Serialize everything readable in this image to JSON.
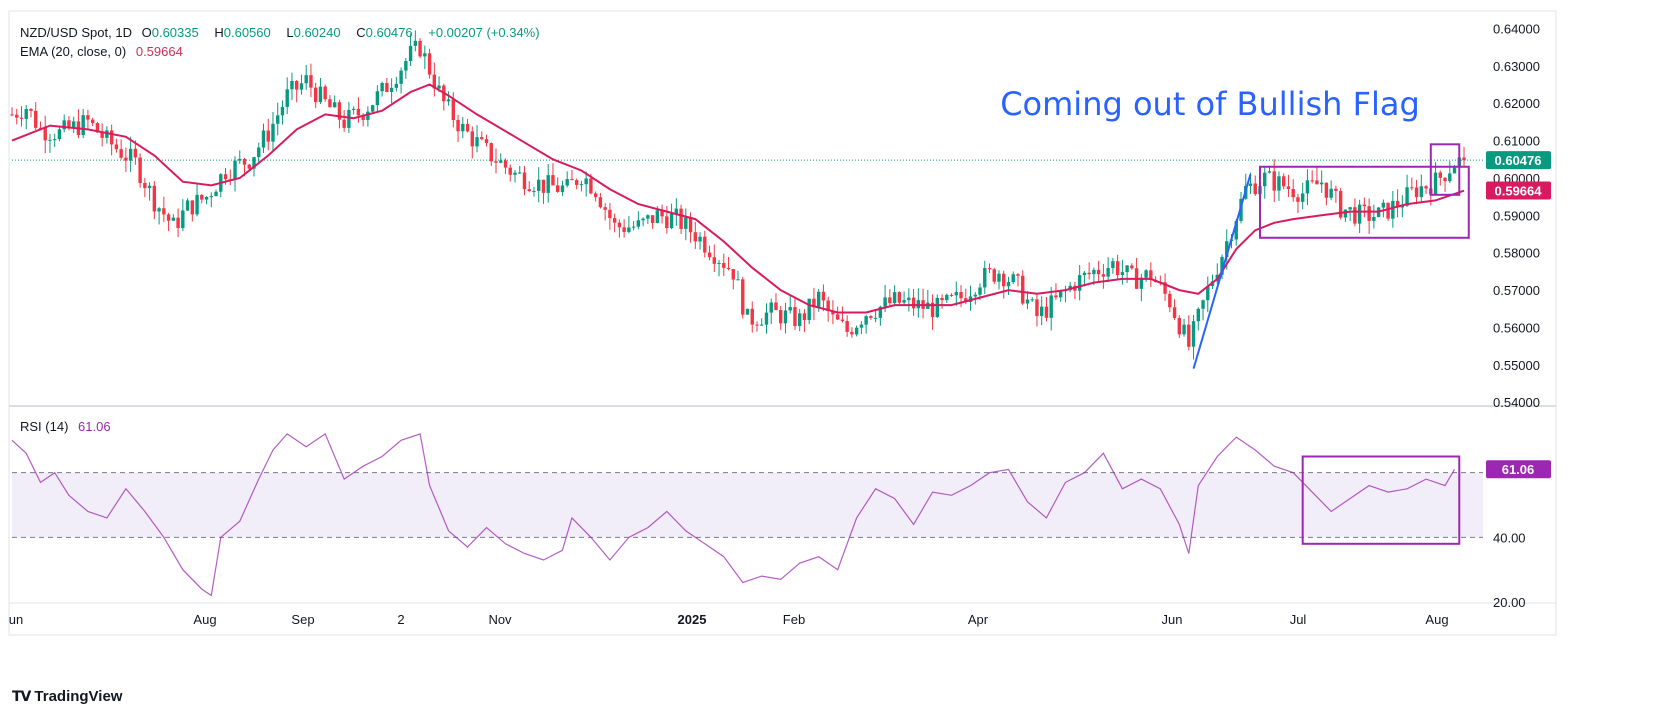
{
  "legend": {
    "symbol": "NZD/USD Spot, 1D",
    "open_label": "O",
    "open": "0.60335",
    "high_label": "H",
    "high": "0.60560",
    "low_label": "L",
    "low": "0.60240",
    "close_label": "C",
    "close": "0.60476",
    "change": "+0.00207 (+0.34%)",
    "ema_label": "EMA (20, close, 0)",
    "ema_value": "0.59664",
    "rsi_label": "RSI (14)",
    "rsi_value": "61.06"
  },
  "annotation": "Coming out of Bullish Flag",
  "brand": {
    "icon": "tradingview-logo-icon",
    "name": "TradingView"
  },
  "colors": {
    "up": "#089981",
    "down": "#f23645",
    "ema": "#d81b60",
    "rsi": "#9c27b0",
    "annotation": "#2962ff",
    "box": "#9c27b0",
    "trendline": "#2962ff",
    "price_badge": "#089981",
    "ema_badge": "#d81b60",
    "rsi_badge": "#9c27b0"
  },
  "chart_data": {
    "type": "candlestick",
    "price_axis": {
      "ticks": [
        "0.64000",
        "0.63000",
        "0.62000",
        "0.61000",
        "0.60000",
        "0.59000",
        "0.58000",
        "0.57000",
        "0.56000",
        "0.55000",
        "0.54000"
      ],
      "range": [
        0.54,
        0.64
      ]
    },
    "rsi_axis": {
      "ticks": [
        "20.00",
        "40.00"
      ],
      "range": [
        20,
        80
      ],
      "bands": [
        40,
        60
      ]
    },
    "x_labels": [
      "un",
      "Aug",
      "Sep",
      "2",
      "Nov",
      "2025",
      "Feb",
      "Apr",
      "Jun",
      "Jul",
      "Aug"
    ],
    "price_badge": "0.60476",
    "ema_badge": "0.59664",
    "rsi_badge": "61.06",
    "current_price": 0.60476,
    "current_ema": 0.59664,
    "current_rsi": 61.06,
    "price_path": [
      [
        0,
        0.617
      ],
      [
        3,
        0.619
      ],
      [
        6,
        0.613
      ],
      [
        10,
        0.612
      ],
      [
        16,
        0.615
      ],
      [
        20,
        0.61
      ],
      [
        26,
        0.604
      ],
      [
        30,
        0.594
      ],
      [
        34,
        0.587
      ],
      [
        37,
        0.592
      ],
      [
        41,
        0.595
      ],
      [
        45,
        0.602
      ],
      [
        50,
        0.605
      ],
      [
        54,
        0.612
      ],
      [
        58,
        0.622
      ],
      [
        62,
        0.626
      ],
      [
        66,
        0.62
      ],
      [
        70,
        0.615
      ],
      [
        74,
        0.618
      ],
      [
        78,
        0.623
      ],
      [
        81,
        0.628
      ],
      [
        84,
        0.633
      ],
      [
        86,
        0.635
      ],
      [
        88,
        0.629
      ],
      [
        91,
        0.62
      ],
      [
        95,
        0.613
      ],
      [
        100,
        0.607
      ],
      [
        106,
        0.601
      ],
      [
        112,
        0.598
      ],
      [
        117,
        0.597
      ],
      [
        120,
        0.601
      ],
      [
        123,
        0.597
      ],
      [
        127,
        0.587
      ],
      [
        132,
        0.587
      ],
      [
        136,
        0.59
      ],
      [
        140,
        0.589
      ],
      [
        144,
        0.585
      ],
      [
        148,
        0.58
      ],
      [
        152,
        0.575
      ],
      [
        155,
        0.562
      ],
      [
        160,
        0.564
      ],
      [
        166,
        0.562
      ],
      [
        170,
        0.568
      ],
      [
        173,
        0.562
      ],
      [
        176,
        0.559
      ],
      [
        180,
        0.564
      ],
      [
        186,
        0.567
      ],
      [
        190,
        0.566
      ],
      [
        195,
        0.565
      ],
      [
        200,
        0.568
      ],
      [
        204,
        0.573
      ],
      [
        208,
        0.575
      ],
      [
        212,
        0.571
      ],
      [
        216,
        0.563
      ],
      [
        220,
        0.567
      ],
      [
        224,
        0.572
      ],
      [
        228,
        0.575
      ],
      [
        232,
        0.577
      ],
      [
        236,
        0.573
      ],
      [
        240,
        0.574
      ],
      [
        244,
        0.567
      ],
      [
        248,
        0.555
      ],
      [
        252,
        0.57
      ],
      [
        256,
        0.583
      ],
      [
        260,
        0.597
      ],
      [
        264,
        0.6
      ],
      [
        268,
        0.598
      ],
      [
        272,
        0.596
      ],
      [
        276,
        0.599
      ],
      [
        280,
        0.592
      ],
      [
        284,
        0.59
      ],
      [
        288,
        0.59
      ],
      [
        292,
        0.593
      ],
      [
        296,
        0.597
      ],
      [
        300,
        0.599
      ],
      [
        304,
        0.604
      ],
      [
        306,
        0.6048
      ]
    ],
    "ema_path": [
      [
        0,
        0.61
      ],
      [
        8,
        0.614
      ],
      [
        16,
        0.613
      ],
      [
        24,
        0.611
      ],
      [
        30,
        0.606
      ],
      [
        36,
        0.599
      ],
      [
        42,
        0.598
      ],
      [
        48,
        0.6
      ],
      [
        54,
        0.606
      ],
      [
        60,
        0.613
      ],
      [
        66,
        0.617
      ],
      [
        72,
        0.616
      ],
      [
        78,
        0.618
      ],
      [
        84,
        0.623
      ],
      [
        88,
        0.625
      ],
      [
        92,
        0.622
      ],
      [
        98,
        0.617
      ],
      [
        106,
        0.611
      ],
      [
        114,
        0.605
      ],
      [
        120,
        0.602
      ],
      [
        126,
        0.597
      ],
      [
        132,
        0.593
      ],
      [
        138,
        0.591
      ],
      [
        144,
        0.589
      ],
      [
        150,
        0.583
      ],
      [
        156,
        0.576
      ],
      [
        162,
        0.57
      ],
      [
        168,
        0.566
      ],
      [
        174,
        0.564
      ],
      [
        180,
        0.564
      ],
      [
        186,
        0.566
      ],
      [
        192,
        0.566
      ],
      [
        198,
        0.566
      ],
      [
        204,
        0.568
      ],
      [
        210,
        0.57
      ],
      [
        216,
        0.569
      ],
      [
        222,
        0.57
      ],
      [
        228,
        0.572
      ],
      [
        234,
        0.573
      ],
      [
        240,
        0.573
      ],
      [
        246,
        0.57
      ],
      [
        250,
        0.569
      ],
      [
        254,
        0.573
      ],
      [
        258,
        0.581
      ],
      [
        262,
        0.586
      ],
      [
        266,
        0.588
      ],
      [
        270,
        0.589
      ],
      [
        276,
        0.59
      ],
      [
        282,
        0.591
      ],
      [
        288,
        0.591
      ],
      [
        294,
        0.593
      ],
      [
        300,
        0.594
      ],
      [
        306,
        0.5966
      ]
    ],
    "rsi_path": [
      [
        0,
        70
      ],
      [
        3,
        66
      ],
      [
        6,
        57
      ],
      [
        9,
        60
      ],
      [
        12,
        53
      ],
      [
        16,
        48
      ],
      [
        20,
        46
      ],
      [
        24,
        55
      ],
      [
        28,
        48
      ],
      [
        32,
        40
      ],
      [
        36,
        30
      ],
      [
        40,
        24
      ],
      [
        42,
        22
      ],
      [
        44,
        40
      ],
      [
        48,
        45
      ],
      [
        52,
        58
      ],
      [
        55,
        67
      ],
      [
        58,
        72
      ],
      [
        62,
        68
      ],
      [
        66,
        72
      ],
      [
        70,
        58
      ],
      [
        74,
        62
      ],
      [
        78,
        65
      ],
      [
        82,
        70
      ],
      [
        86,
        72
      ],
      [
        88,
        56
      ],
      [
        92,
        42
      ],
      [
        96,
        37
      ],
      [
        100,
        43
      ],
      [
        104,
        38
      ],
      [
        108,
        35
      ],
      [
        112,
        33
      ],
      [
        116,
        36
      ],
      [
        118,
        46
      ],
      [
        122,
        40
      ],
      [
        126,
        33
      ],
      [
        130,
        40
      ],
      [
        134,
        43
      ],
      [
        138,
        48
      ],
      [
        142,
        42
      ],
      [
        146,
        38
      ],
      [
        150,
        34
      ],
      [
        154,
        26
      ],
      [
        158,
        28
      ],
      [
        162,
        27
      ],
      [
        166,
        32
      ],
      [
        170,
        34
      ],
      [
        174,
        30
      ],
      [
        178,
        46
      ],
      [
        182,
        55
      ],
      [
        186,
        52
      ],
      [
        190,
        44
      ],
      [
        194,
        54
      ],
      [
        198,
        53
      ],
      [
        202,
        56
      ],
      [
        206,
        60
      ],
      [
        210,
        61
      ],
      [
        214,
        51
      ],
      [
        218,
        46
      ],
      [
        222,
        57
      ],
      [
        226,
        60
      ],
      [
        230,
        66
      ],
      [
        234,
        55
      ],
      [
        238,
        58
      ],
      [
        242,
        55
      ],
      [
        246,
        44
      ],
      [
        248,
        35
      ],
      [
        250,
        56
      ],
      [
        254,
        65
      ],
      [
        258,
        71
      ],
      [
        262,
        67
      ],
      [
        266,
        62
      ],
      [
        270,
        60
      ],
      [
        274,
        54
      ],
      [
        278,
        48
      ],
      [
        282,
        52
      ],
      [
        286,
        56
      ],
      [
        290,
        54
      ],
      [
        294,
        55
      ],
      [
        298,
        58
      ],
      [
        302,
        56
      ],
      [
        304,
        61
      ]
    ],
    "box_flag": {
      "t0": 263,
      "t1": 307,
      "p_hi": 0.603,
      "p_lo": 0.584
    },
    "box_breakout": {
      "t0": 299,
      "t1": 305,
      "p_hi": 0.609,
      "p_lo": 0.5955
    },
    "box_rsi": {
      "t0": 272,
      "t1": 305,
      "v_hi": 65,
      "v_lo": 38
    },
    "trendline": [
      [
        249,
        0.549
      ],
      [
        261,
        0.601
      ]
    ]
  }
}
